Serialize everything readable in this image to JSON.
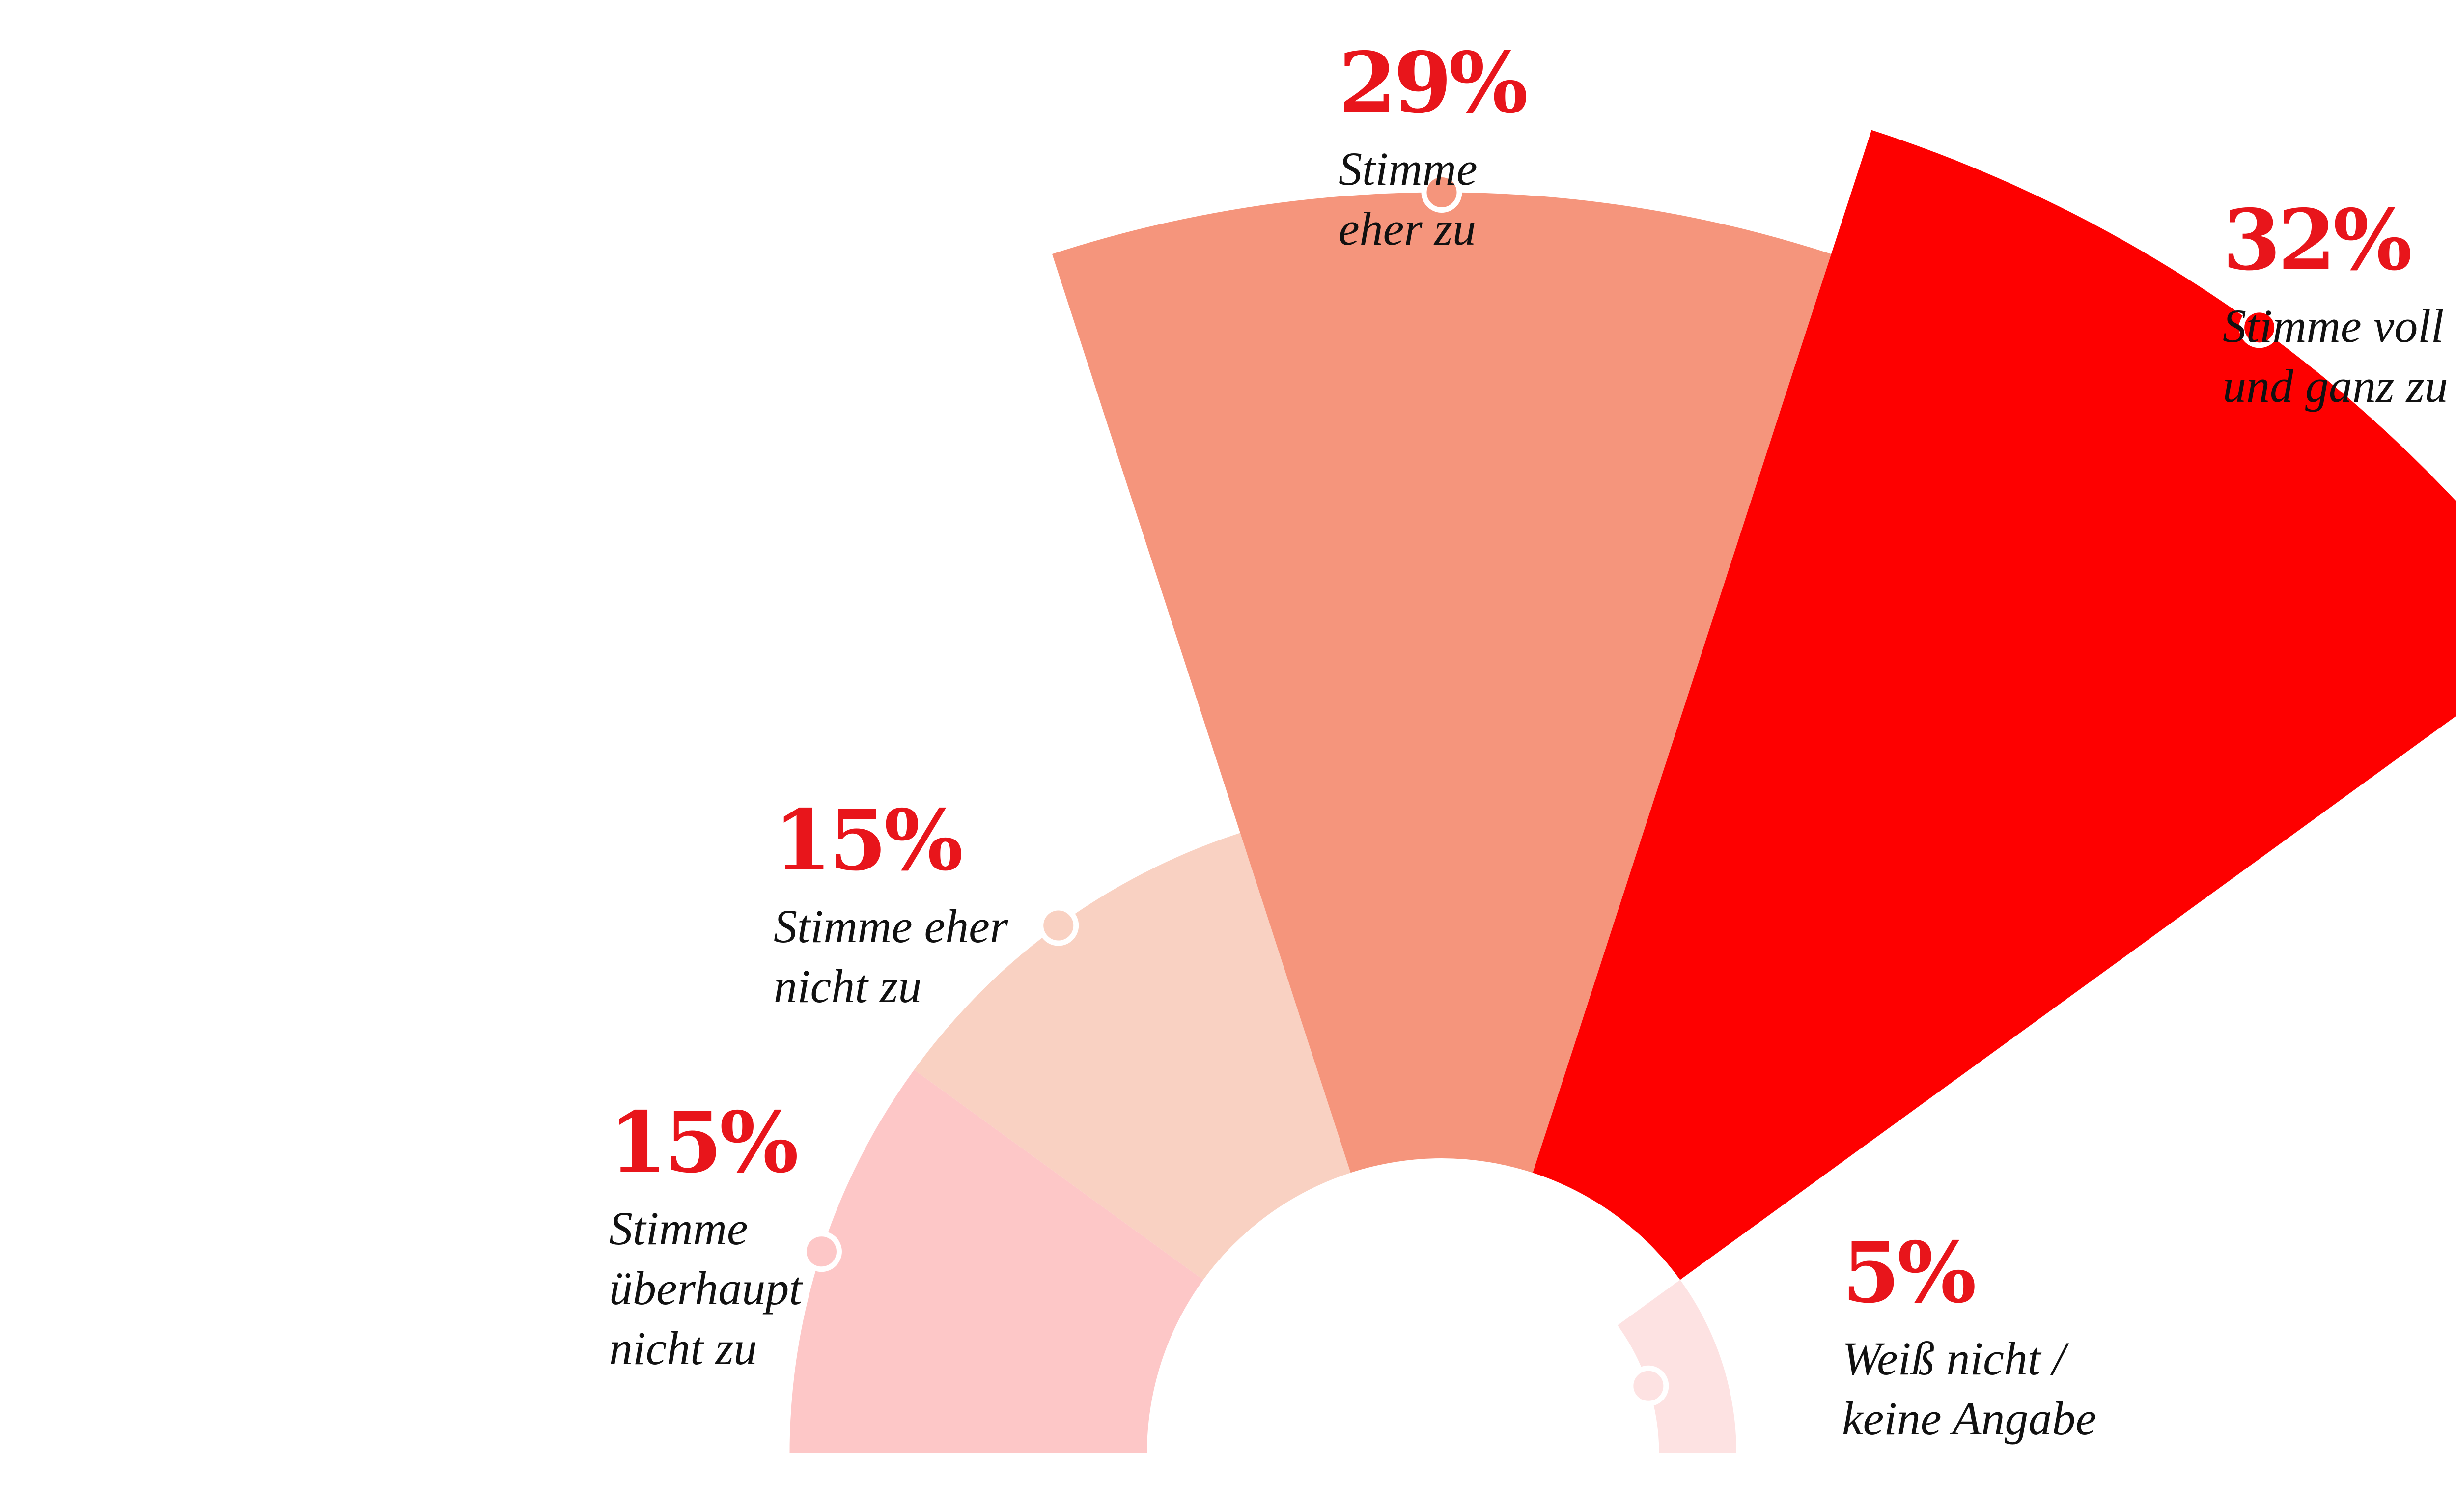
{
  "chart_data": {
    "type": "pie",
    "variant": "half-polar-area (semicircle rose, radius encodes value)",
    "grid": false,
    "legend": "none (labels placed at each segment)",
    "segments": [
      {
        "label_lines": [
          "Stimme",
          "überhaupt",
          "nicht zu"
        ],
        "value": 15,
        "value_label": "15%",
        "color": "#fdc7c7"
      },
      {
        "label_lines": [
          "Stimme eher",
          "nicht zu"
        ],
        "value": 15,
        "value_label": "15%",
        "color": "#f9d1c2"
      },
      {
        "label_lines": [
          "Stimme",
          "eher zu"
        ],
        "value": 29,
        "value_label": "29%",
        "color": "#f5957c"
      },
      {
        "label_lines": [
          "Stimme voll",
          "und ganz zu"
        ],
        "value": 32,
        "value_label": "32%",
        "color": "#fe0000"
      },
      {
        "label_lines": [
          "Weiß nicht /",
          "keine Angabe"
        ],
        "value": 5,
        "value_label": "5%",
        "color": "#fde2e2"
      }
    ]
  },
  "colors": {
    "value_label": "#e8151b",
    "category_label": "#111111",
    "marker_stroke": "#ffffff"
  }
}
